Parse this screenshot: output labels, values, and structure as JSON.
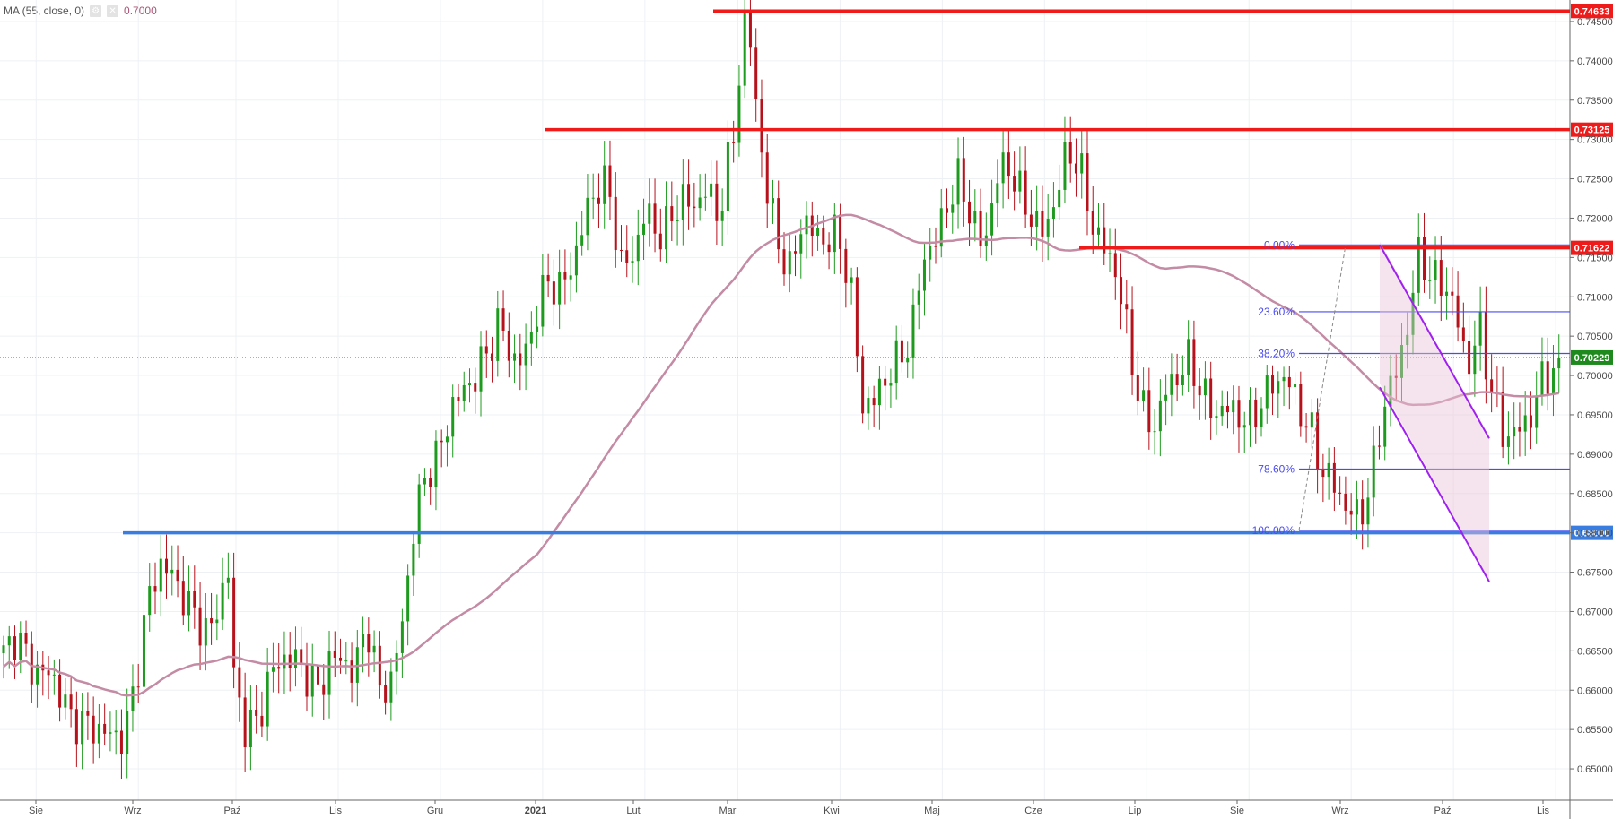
{
  "legend": {
    "indicator": "MA (55, close, 0)",
    "value": "0.7000"
  },
  "colors": {
    "up": "#26a69a",
    "up_candle": "#1e9a1e",
    "down_candle": "#b5121b",
    "ma": "#c48ba4",
    "resistance": "#ef1a1a",
    "support": "#3a7de0",
    "fib": "#4a4af0",
    "channel": "#a020f0",
    "current_price": "#1e8a1e"
  },
  "chart_data": {
    "type": "candlestick",
    "instrument_note": "",
    "y_axis": {
      "min": 0.6475,
      "max": 0.7475,
      "ticks": [
        "0.74500",
        "0.74000",
        "0.73500",
        "0.73000",
        "0.72500",
        "0.72000",
        "0.71500",
        "0.71000",
        "0.70500",
        "0.70000",
        "0.69500",
        "0.69000",
        "0.68500",
        "0.68000",
        "0.67500",
        "0.67000",
        "0.66500",
        "0.66000",
        "0.65500",
        "0.65000"
      ],
      "tick_values": [
        0.745,
        0.74,
        0.735,
        0.73,
        0.725,
        0.72,
        0.715,
        0.71,
        0.705,
        0.7,
        0.695,
        0.69,
        0.685,
        0.68,
        0.675,
        0.67,
        0.665,
        0.66,
        0.655,
        0.65
      ]
    },
    "x_axis": {
      "labels": [
        "Sie",
        "Wrz",
        "Paź",
        "Lis",
        "Gru",
        "2021",
        "Lut",
        "Mar",
        "Kwi",
        "Maj",
        "Cze",
        "Lip",
        "Sie",
        "Wrz",
        "Paź",
        "Lis"
      ],
      "label_index": [
        7,
        29,
        50,
        72,
        94,
        116,
        138,
        158,
        180,
        202,
        224,
        246,
        268,
        290,
        312,
        334
      ],
      "bold": [
        false,
        false,
        false,
        false,
        false,
        true,
        false,
        false,
        false,
        false,
        false,
        false,
        false,
        false,
        false,
        false
      ]
    },
    "ma_period": 55,
    "levels": [
      {
        "value": 0.74633,
        "label": "0.74633",
        "kind": "resistance"
      },
      {
        "value": 0.73125,
        "label": "0.73125",
        "kind": "resistance"
      },
      {
        "value": 0.71622,
        "label": "0.71622",
        "kind": "resistance"
      },
      {
        "value": 0.68,
        "label": "0.68000",
        "kind": "support"
      }
    ],
    "current_price": {
      "value": 0.70229,
      "label": "0.70229"
    },
    "fibonacci": [
      {
        "label": "0.00%",
        "value": 0.7166
      },
      {
        "label": "23.60%",
        "value": 0.7081
      },
      {
        "label": "38.20%",
        "value": 0.7028
      },
      {
        "label": "78.60%",
        "value": 0.6881
      },
      {
        "label": "100.00%",
        "value": 0.6803
      }
    ],
    "grid": true,
    "legend_position": "top-left"
  }
}
